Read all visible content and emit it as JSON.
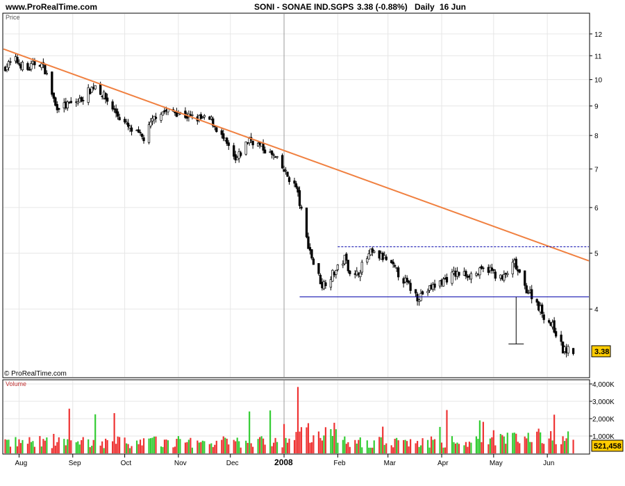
{
  "header": {
    "site": "www.ProRealTime.com",
    "instrument": "SONI - SONAE IND.SGPS",
    "quote": "3.38 (-0.88%)",
    "period": "Daily",
    "date": "16 Jun"
  },
  "copyright": "© ProRealTime.com",
  "price_panel": {
    "label": "Price",
    "last_price": "3.38",
    "last_price_color": "#ffcc00"
  },
  "volume_panel": {
    "label": "Volume",
    "last_volume": "521,458",
    "last_volume_color": "#ffcc00"
  },
  "chart_data": [
    {
      "type": "candlestick",
      "scale": "log",
      "ylim": [
        3.05,
        13.0
      ],
      "yticks": [
        4,
        5,
        6,
        7,
        8,
        9,
        10,
        11,
        12
      ],
      "ytick_labels": [
        "4",
        "5",
        "6",
        "7",
        "8",
        "9",
        "10",
        "11",
        "12"
      ],
      "xtick_labels": [
        "Aug",
        "Sep",
        "Oct",
        "Nov",
        "Dec",
        "2008",
        "Feb",
        "Mar",
        "Apr",
        "May",
        "Jun"
      ],
      "x_range": [
        "2007-07-23",
        "2008-06-25"
      ],
      "candle_colors": {
        "up": "#ffffff",
        "down": "#000000"
      },
      "annotations": {
        "trendline": {
          "from": [
            "2007-07-23",
            11.3
          ],
          "to": [
            "2008-06-25",
            4.85
          ],
          "color": "#f08040"
        },
        "resistance": {
          "from": [
            "2008-02-01",
            5.13
          ],
          "to": [
            "2008-06-25",
            5.13
          ],
          "style": "dashed",
          "color": "#0000aa"
        },
        "support": {
          "from": [
            "2008-01-10",
            4.2
          ],
          "to": [
            "2008-06-25",
            4.2
          ],
          "color": "#0000aa"
        },
        "target_marker": {
          "date": "2008-05-14",
          "top": 4.2,
          "bottom": 3.48
        }
      },
      "last_price": 3.38
    },
    {
      "type": "bar",
      "name": "Volume",
      "ylim": [
        0,
        4200
      ],
      "yticks": [
        1000,
        2000,
        3000,
        4000
      ],
      "ytick_labels": [
        "1,000K",
        "2,000K",
        "3,000K",
        "4,000K"
      ],
      "colors": {
        "up": "#33cc33",
        "down": "#ee3333"
      },
      "last_volume": 521458
    }
  ]
}
